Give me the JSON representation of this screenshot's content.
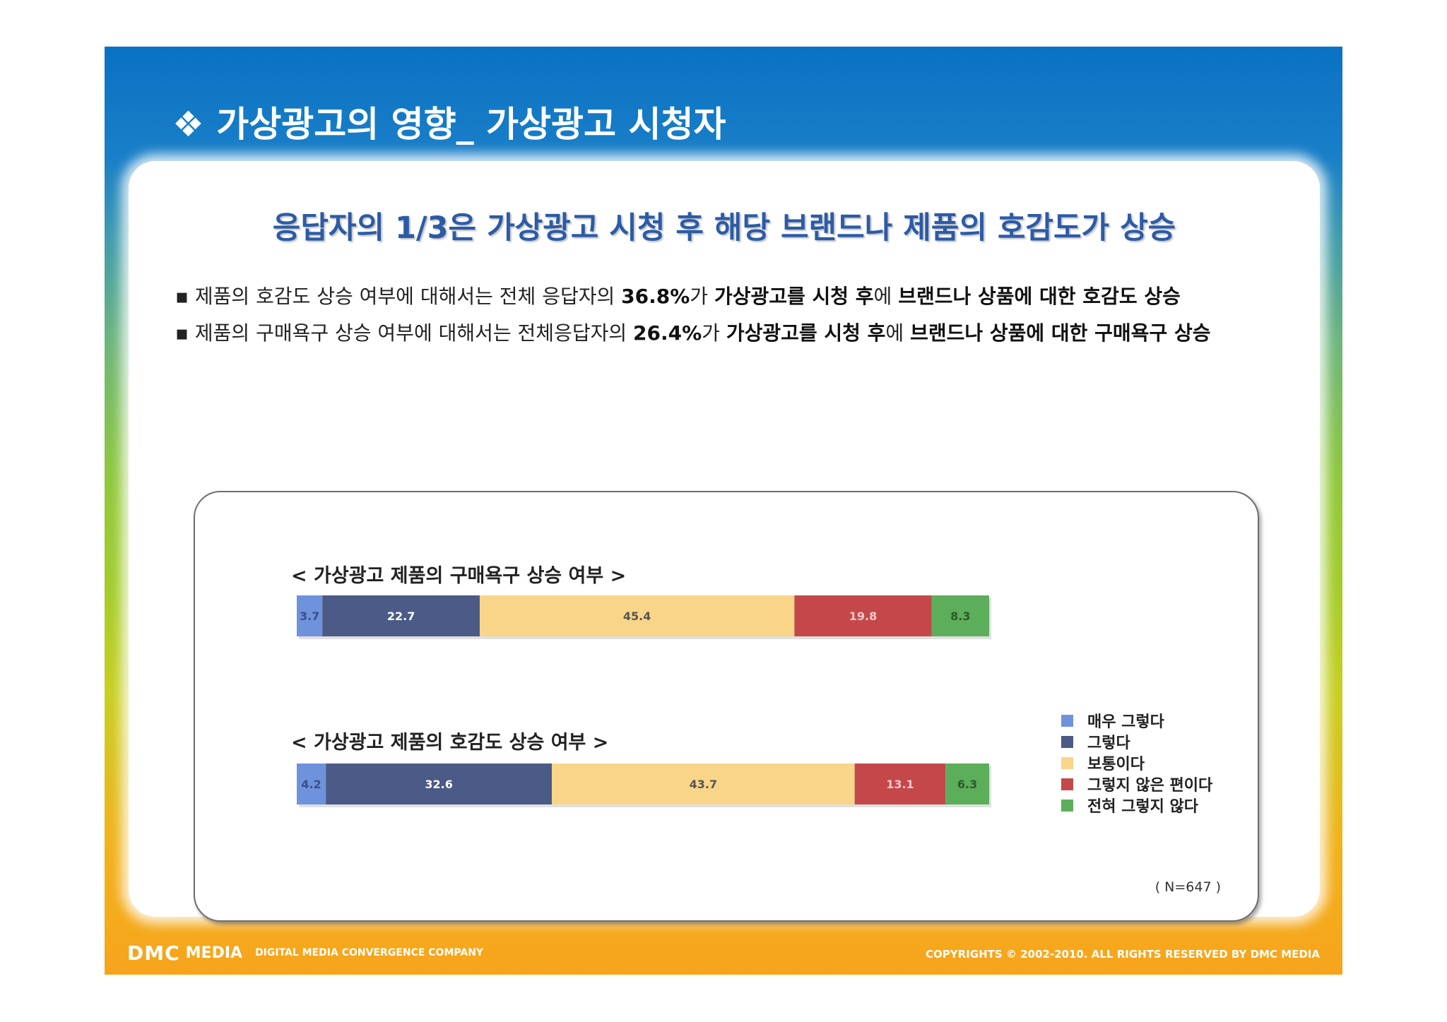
{
  "slide": {
    "title": "❖ 가상광고의 영향_ 가상광고 시청자",
    "headline": "응답자의 1/3은 가상광고 시청 후 해당 브랜드나 제품의 호감도가 상승",
    "bullets": [
      {
        "marker": "▪",
        "pre": " 제품의 호감도 상승 여부에 대해서는 전체 응답자의 ",
        "pct": "36.8%",
        "mid1": "가 ",
        "bold1": "가상광고를 시청 후",
        "mid2": "에 ",
        "bold2": "브랜드나 상품에 대한 호감도 상승"
      },
      {
        "marker": "▪",
        "pre": " 제품의 구매욕구 상승 여부에 대해서는 전체응답자의 ",
        "pct": "26.4%",
        "mid1": "가 ",
        "bold1": "가상광고를 시청 후",
        "mid2": "에 ",
        "bold2": "브랜드나 상품에 대한 구매욕구 상승"
      }
    ],
    "sample_note": "( N=647 )",
    "footer": {
      "logo_dmc": "DMC",
      "logo_media": "MEDIA",
      "logo_tagline": "DIGITAL MEDIA CONVERGENCE COMPANY",
      "copyright": "COPYRIGHTS © 2002-2010. ALL RIGHTS RESERVED BY DMC MEDIA"
    }
  },
  "chart_data": [
    {
      "type": "bar",
      "orientation": "horizontal-stacked-100",
      "title": "< 가상광고 제품의 구매욕구 상승 여부 >",
      "series": [
        {
          "name": "매우 그렇다",
          "values": [
            3.7
          ],
          "label": "3.7",
          "color": "#6f92dc"
        },
        {
          "name": "그렇다",
          "values": [
            22.7
          ],
          "label": "22.7",
          "color": "#4b5a86"
        },
        {
          "name": "보통이다",
          "values": [
            45.4
          ],
          "label": "45.4",
          "color": "#f8d588"
        },
        {
          "name": "그렇지 않은 편이다",
          "values": [
            19.8
          ],
          "label": "19.8",
          "color": "#c4484a"
        },
        {
          "name": "전혀 그렇지 않다",
          "values": [
            8.3
          ],
          "label": "8.3",
          "color": "#5cae5a"
        }
      ]
    },
    {
      "type": "bar",
      "orientation": "horizontal-stacked-100",
      "title": "< 가상광고 제품의 호감도 상승 여부 >",
      "series": [
        {
          "name": "매우 그렇다",
          "values": [
            4.2
          ],
          "label": "4.2",
          "color": "#6f92dc"
        },
        {
          "name": "그렇다",
          "values": [
            32.6
          ],
          "label": "32.6",
          "color": "#4b5a86"
        },
        {
          "name": "보통이다",
          "values": [
            43.7
          ],
          "label": "43.7",
          "color": "#f8d588"
        },
        {
          "name": "그렇지 않은 편이다",
          "values": [
            13.1
          ],
          "label": "13.1",
          "color": "#c4484a"
        },
        {
          "name": "전혀 그렇지 않다",
          "values": [
            6.3
          ],
          "label": "6.3",
          "color": "#5cae5a"
        }
      ]
    }
  ],
  "legend": {
    "position": "right",
    "items": [
      {
        "label": "매우 그렇다",
        "color": "#6f92dc"
      },
      {
        "label": "그렇다",
        "color": "#4b5a86"
      },
      {
        "label": "보통이다",
        "color": "#f8d588"
      },
      {
        "label": "그렇지 않은 편이다",
        "color": "#c4484a"
      },
      {
        "label": "전혀 그렇지 않다",
        "color": "#5cae5a"
      }
    ]
  }
}
